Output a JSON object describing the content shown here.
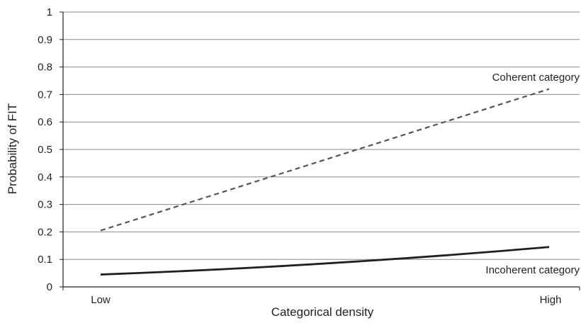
{
  "chart_data": {
    "type": "line",
    "title": "",
    "xlabel": "Categorical density",
    "ylabel": "Probability of FIT",
    "categories": [
      "Low",
      "High"
    ],
    "ylim": [
      0,
      1
    ],
    "yticks": [
      "0",
      "0.1",
      "0.2",
      "0.3",
      "0.4",
      "0.5",
      "0.6",
      "0.7",
      "0.8",
      "0.9",
      "1"
    ],
    "grid": true,
    "series": [
      {
        "name": "Coherent category",
        "line_style": "dashed",
        "color": "#555555",
        "x": [
          0,
          1
        ],
        "values": [
          0.205,
          0.72
        ]
      },
      {
        "name": "Incoherent category",
        "line_style": "solid",
        "color": "#231f20",
        "x": [
          0,
          1
        ],
        "values": [
          0.045,
          0.145
        ],
        "curve": "slightly convex"
      }
    ]
  }
}
